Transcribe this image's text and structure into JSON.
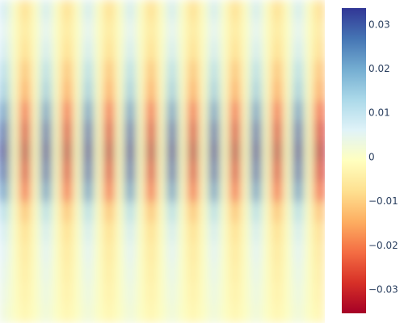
{
  "chart_data": {
    "type": "heatmap",
    "colorscale": [
      "#a50026",
      "#d73027",
      "#f46d43",
      "#fdae61",
      "#fee090",
      "#ffffbf",
      "#e0f3f8",
      "#abd9e9",
      "#74add1",
      "#4575b4",
      "#313695"
    ],
    "zlim": [
      -0.0353,
      0.0338
    ],
    "zticks": [
      0.03,
      0.02,
      0.01,
      0,
      {
        "value": -0.01,
        "label": "−0.01"
      },
      {
        "value": -0.02,
        "label": "−0.02"
      },
      {
        "value": -0.03,
        "label": "−0.03"
      }
    ],
    "x": [
      5,
      18,
      31,
      44,
      57,
      70,
      83,
      96,
      109,
      122,
      135,
      148,
      161,
      174,
      187,
      200,
      213,
      226,
      239,
      252,
      265,
      278,
      291,
      304,
      317,
      330,
      343,
      356,
      369,
      382,
      395
    ],
    "y": [
      12.5,
      37.5,
      62.5,
      87.5,
      112.5,
      137.5,
      162.5,
      187.5,
      212.5,
      237.5,
      262.5,
      287.5,
      312.5,
      337.5,
      362.5,
      387.5
    ],
    "z": [
      [
        0.008,
        0,
        -0.008,
        0,
        0.008,
        0,
        -0.008,
        0,
        0.008,
        0,
        -0.008,
        0,
        0.008,
        0,
        -0.008,
        0,
        0.008,
        0,
        -0.008,
        0,
        0.008,
        0,
        -0.008,
        0,
        0.008,
        0,
        -0.008,
        0,
        0.008,
        0,
        -0.008
      ],
      [
        0.006,
        0,
        -0.006,
        0,
        0.006,
        0,
        -0.006,
        0,
        0.006,
        0,
        -0.006,
        0,
        0.006,
        0,
        -0.006,
        0,
        0.006,
        0,
        -0.006,
        0,
        0.006,
        0,
        -0.006,
        0,
        0.006,
        0,
        -0.006,
        0,
        0.006,
        0,
        -0.006
      ],
      [
        0.008,
        0,
        -0.008,
        0,
        0.008,
        0,
        -0.008,
        0,
        0.008,
        0,
        -0.008,
        0,
        0.008,
        0,
        -0.008,
        0,
        0.008,
        0,
        -0.008,
        0,
        0.008,
        0,
        -0.008,
        0,
        0.008,
        0,
        -0.008,
        0,
        0.008,
        0,
        -0.008
      ],
      [
        0.012,
        0,
        -0.012,
        0,
        0.012,
        0,
        -0.012,
        0,
        0.012,
        0,
        -0.012,
        0,
        0.012,
        0,
        -0.012,
        0,
        0.012,
        0,
        -0.012,
        0,
        0.012,
        0,
        -0.012,
        0,
        0.012,
        0,
        -0.012,
        0,
        0.012,
        0,
        -0.012
      ],
      [
        0.015,
        0,
        -0.015,
        0,
        0.015,
        0,
        -0.015,
        0,
        0.015,
        0,
        -0.015,
        0,
        0.015,
        0,
        -0.015,
        0,
        0.015,
        0,
        -0.015,
        0,
        0.015,
        0,
        -0.015,
        0,
        0.015,
        0,
        -0.015,
        0,
        0.015,
        0,
        -0.015
      ],
      [
        0.022,
        0,
        -0.022,
        0,
        0.022,
        0,
        -0.022,
        0,
        0.022,
        0,
        -0.022,
        0,
        0.022,
        0,
        -0.022,
        0,
        0.022,
        0,
        -0.022,
        0,
        0.022,
        0,
        -0.022,
        0,
        0.022,
        0,
        -0.022,
        0,
        0.022,
        0,
        -0.022
      ],
      [
        0.028,
        0,
        -0.028,
        0,
        0.028,
        0,
        -0.028,
        0,
        0.028,
        0,
        -0.028,
        0,
        0.028,
        0,
        -0.028,
        0,
        0.028,
        0,
        -0.028,
        0,
        0.028,
        0,
        -0.028,
        0,
        0.028,
        0,
        -0.028,
        0,
        0.028,
        0,
        -0.028
      ],
      [
        0.032,
        0,
        -0.032,
        0,
        0.032,
        0,
        -0.032,
        0,
        0.032,
        0,
        -0.032,
        0,
        0.032,
        0,
        -0.032,
        0,
        0.032,
        0,
        -0.032,
        0,
        0.032,
        0,
        -0.032,
        0,
        0.032,
        0,
        -0.032,
        0,
        0.032,
        0,
        -0.032
      ],
      [
        0.028,
        0,
        -0.028,
        0,
        0.028,
        0,
        -0.028,
        0,
        0.028,
        0,
        -0.028,
        0,
        0.028,
        0,
        -0.028,
        0,
        0.028,
        0,
        -0.028,
        0,
        0.028,
        0,
        -0.028,
        0,
        0.028,
        0,
        -0.028,
        0,
        0.028,
        0,
        -0.028
      ],
      [
        0.022,
        0,
        -0.022,
        0,
        0.022,
        0,
        -0.022,
        0,
        0.022,
        0,
        -0.022,
        0,
        0.022,
        0,
        -0.022,
        0,
        0.022,
        0,
        -0.022,
        0,
        0.022,
        0,
        -0.022,
        0,
        0.022,
        0,
        -0.022,
        0,
        0.022,
        0,
        -0.022
      ],
      [
        0.012,
        0,
        -0.012,
        0,
        0.012,
        0,
        -0.012,
        0,
        0.012,
        0,
        -0.012,
        0,
        0.012,
        0,
        -0.012,
        0,
        0.012,
        0,
        -0.012,
        0,
        0.012,
        0,
        -0.012,
        0,
        0.012,
        0,
        -0.012,
        0,
        0.012,
        0,
        -0.012
      ],
      [
        0.008,
        0,
        -0.008,
        0,
        0.008,
        0,
        -0.008,
        0,
        0.008,
        0,
        -0.008,
        0,
        0.008,
        0,
        -0.008,
        0,
        0.008,
        0,
        -0.008,
        0,
        0.008,
        0,
        -0.008,
        0,
        0.008,
        0,
        -0.008,
        0,
        0.008,
        0,
        -0.008
      ],
      [
        0.006,
        0,
        -0.006,
        0,
        0.006,
        0,
        -0.006,
        0,
        0.006,
        0,
        -0.006,
        0,
        0.006,
        0,
        -0.006,
        0,
        0.006,
        0,
        -0.006,
        0,
        0.006,
        0,
        -0.006,
        0,
        0.006,
        0,
        -0.006,
        0,
        0.006,
        0,
        -0.006
      ],
      [
        0.005,
        0,
        -0.005,
        0,
        0.005,
        0,
        -0.005,
        0,
        0.005,
        0,
        -0.005,
        0,
        0.005,
        0,
        -0.005,
        0,
        0.005,
        0,
        -0.005,
        0,
        0.005,
        0,
        -0.005,
        0,
        0.005,
        0,
        -0.005,
        0,
        0.005,
        0,
        -0.005
      ],
      [
        0.004,
        0,
        -0.004,
        0,
        0.004,
        0,
        -0.004,
        0,
        0.004,
        0,
        -0.004,
        0,
        0.004,
        0,
        -0.004,
        0,
        0.004,
        0,
        -0.004,
        0,
        0.004,
        0,
        -0.004,
        0,
        0.004,
        0,
        -0.004,
        0,
        0.004,
        0,
        -0.004
      ],
      [
        0.003,
        0,
        -0.003,
        0,
        0.003,
        0,
        -0.003,
        0,
        0.003,
        0,
        -0.003,
        0,
        0.003,
        0,
        -0.003,
        0,
        0.003,
        0,
        -0.003,
        0,
        0.003,
        0,
        -0.003,
        0,
        0.003,
        0,
        -0.003,
        0,
        0.003,
        0,
        -0.003
      ]
    ]
  }
}
